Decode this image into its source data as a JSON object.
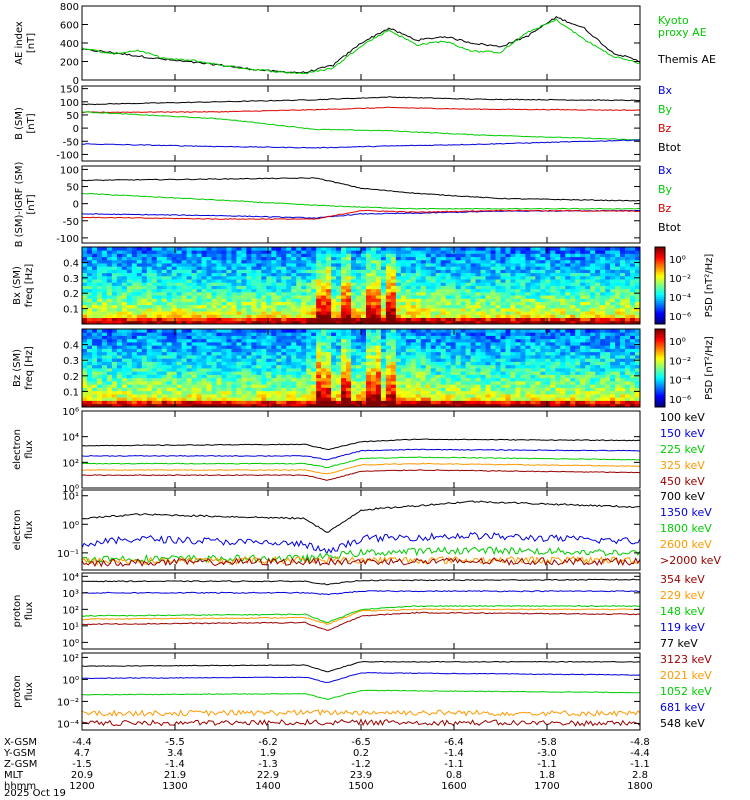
{
  "time_axis": {
    "labels": [
      "1200",
      "1300",
      "1400",
      "1500",
      "1600",
      "1700",
      "1800"
    ],
    "rows": [
      {
        "label": "X-GSM",
        "values": [
          "-4.4",
          "-5.5",
          "-6.2",
          "-6.5",
          "-6.4",
          "-5.8",
          "-4.8"
        ]
      },
      {
        "label": "Y-GSM",
        "values": [
          "4.7",
          "3.4",
          "1.9",
          "0.2",
          "-1.4",
          "-3.0",
          "-4.4"
        ]
      },
      {
        "label": "Z-GSM",
        "values": [
          "-1.5",
          "-1.4",
          "-1.3",
          "-1.2",
          "-1.1",
          "-1.1",
          "-1.1"
        ]
      },
      {
        "label": "MLT",
        "values": [
          "20.9",
          "21.9",
          "22.9",
          "23.9",
          "0.8",
          "1.8",
          "2.8"
        ]
      },
      {
        "label": "hhmm",
        "values": [
          "1200",
          "1300",
          "1400",
          "1500",
          "1600",
          "1700",
          "1800"
        ]
      }
    ],
    "date": "2025 Oct 19"
  },
  "chart_data": [
    {
      "type": "line",
      "id": "ae",
      "ylabel": "AE index",
      "yunits": "[nT]",
      "ylim": [
        0,
        800
      ],
      "yticks": [
        "0",
        "200",
        "400",
        "600",
        "800"
      ],
      "ytick_values": [
        0,
        200,
        400,
        600,
        800
      ],
      "series": [
        {
          "name": "Themis AE",
          "color": "#000000",
          "x": [
            0,
            0.05,
            0.1,
            0.15,
            0.2,
            0.25,
            0.3,
            0.35,
            0.4,
            0.45,
            0.5,
            0.55,
            0.6,
            0.65,
            0.7,
            0.75,
            0.8,
            0.85,
            0.9,
            0.95,
            1.0
          ],
          "values": [
            330,
            300,
            260,
            220,
            190,
            160,
            120,
            90,
            80,
            160,
            400,
            560,
            430,
            470,
            400,
            360,
            480,
            680,
            560,
            300,
            200
          ]
        },
        {
          "name": "Kyoto proxy AE",
          "color": "#00cc00",
          "x": [
            0,
            0.05,
            0.1,
            0.15,
            0.2,
            0.25,
            0.3,
            0.35,
            0.4,
            0.45,
            0.5,
            0.55,
            0.6,
            0.65,
            0.7,
            0.75,
            0.8,
            0.85,
            0.9,
            0.95,
            1.0
          ],
          "values": [
            350,
            280,
            320,
            230,
            210,
            160,
            120,
            90,
            70,
            130,
            370,
            540,
            380,
            420,
            310,
            300,
            520,
            650,
            440,
            260,
            180
          ]
        }
      ],
      "legend": [
        "Kyoto",
        "proxy AE",
        "Themis AE"
      ]
    },
    {
      "type": "line",
      "id": "bsm",
      "ylabel": "B (SM)",
      "yunits": "[nT]",
      "ylim": [
        -125,
        160
      ],
      "yticks": [
        "150",
        "100",
        "50",
        "0",
        "-50",
        "-100"
      ],
      "ytick_values": [
        150,
        100,
        50,
        0,
        -50,
        -100
      ],
      "series": [
        {
          "name": "Btot",
          "color": "#000000",
          "x": [
            0,
            0.25,
            0.42,
            0.55,
            0.7,
            1.0
          ],
          "values": [
            90,
            100,
            108,
            118,
            110,
            105
          ]
        },
        {
          "name": "Bz",
          "color": "#dd0000",
          "x": [
            0,
            0.25,
            0.42,
            0.55,
            0.7,
            1.0
          ],
          "values": [
            60,
            62,
            70,
            78,
            72,
            68
          ]
        },
        {
          "name": "By",
          "color": "#00cc00",
          "x": [
            0,
            0.25,
            0.42,
            0.55,
            0.7,
            1.0
          ],
          "values": [
            62,
            35,
            -5,
            -10,
            -25,
            -45
          ]
        },
        {
          "name": "Bx",
          "color": "#0000dd",
          "x": [
            0,
            0.25,
            0.42,
            0.55,
            0.7,
            1.0
          ],
          "values": [
            -60,
            -70,
            -75,
            -68,
            -62,
            -45
          ]
        }
      ],
      "legend": [
        "Bx",
        "By",
        "Bz",
        "Btot"
      ]
    },
    {
      "type": "line",
      "id": "bigrf",
      "ylabel": "B (SM)-IGRF (SM)",
      "yunits": "[nT]",
      "ylim": [
        -115,
        110
      ],
      "yticks": [
        "100",
        "50",
        "0",
        "-50",
        "-100"
      ],
      "ytick_values": [
        100,
        50,
        0,
        -50,
        -100
      ],
      "series": [
        {
          "name": "Btot",
          "color": "#000000",
          "x": [
            0,
            0.25,
            0.42,
            0.5,
            0.6,
            0.75,
            1.0
          ],
          "values": [
            68,
            72,
            75,
            45,
            30,
            15,
            8
          ]
        },
        {
          "name": "By",
          "color": "#00cc00",
          "x": [
            0,
            0.25,
            0.42,
            0.5,
            0.6,
            0.75,
            1.0
          ],
          "values": [
            30,
            10,
            -5,
            -10,
            -15,
            -15,
            -15
          ]
        },
        {
          "name": "Bx",
          "color": "#0000dd",
          "x": [
            0,
            0.25,
            0.42,
            0.5,
            0.6,
            0.75,
            1.0
          ],
          "values": [
            -30,
            -35,
            -42,
            -30,
            -28,
            -22,
            -20
          ]
        },
        {
          "name": "Bz",
          "color": "#dd0000",
          "x": [
            0,
            0.25,
            0.42,
            0.5,
            0.6,
            0.75,
            1.0
          ],
          "values": [
            -40,
            -45,
            -45,
            -20,
            -25,
            -20,
            -22
          ]
        }
      ],
      "legend": [
        "Bx",
        "By",
        "Bz",
        "Btot"
      ]
    },
    {
      "type": "heatmap",
      "id": "bx_spec",
      "ylabel": "Bx (SM)",
      "ylabel2": "freq [Hz]",
      "ylim": [
        0,
        0.5
      ],
      "yticks": [
        "0.4",
        "0.3",
        "0.2",
        "0.1"
      ],
      "ytick_values": [
        0.4,
        0.3,
        0.2,
        0.1
      ],
      "colorbar": {
        "label": "PSD [nT²/Hz]",
        "ticks": [
          "10⁰",
          "10⁻²",
          "10⁻⁴",
          "10⁻⁶"
        ]
      },
      "enhanced_intervals": [
        0.43,
        0.47,
        0.52,
        0.55
      ]
    },
    {
      "type": "heatmap",
      "id": "bz_spec",
      "ylabel": "Bz (SM)",
      "ylabel2": "freq [Hz]",
      "ylim": [
        0,
        0.5
      ],
      "yticks": [
        "0.4",
        "0.3",
        "0.2",
        "0.1"
      ],
      "ytick_values": [
        0.4,
        0.3,
        0.2,
        0.1
      ],
      "colorbar": {
        "label": "PSD [nT²/Hz]",
        "ticks": [
          "10⁰",
          "10⁻²",
          "10⁻⁴",
          "10⁻⁶"
        ]
      },
      "enhanced_intervals": [
        0.43,
        0.47,
        0.52,
        0.55
      ]
    },
    {
      "type": "line",
      "id": "elec_low",
      "ylabel": "electron",
      "ylabel2": "flux",
      "ylog": true,
      "ylim": [
        0,
        6
      ],
      "yticks": [
        "10⁶",
        "10⁴",
        "10²",
        "10⁰"
      ],
      "ytick_values": [
        6,
        4,
        2,
        0
      ],
      "series": [
        {
          "name": "100 keV",
          "color": "#000000",
          "x": [
            0,
            0.4,
            0.44,
            0.5,
            0.6,
            1.0
          ],
          "values": [
            3.3,
            3.4,
            3.0,
            3.6,
            3.8,
            3.7
          ]
        },
        {
          "name": "150 keV",
          "color": "#0000dd",
          "x": [
            0,
            0.4,
            0.44,
            0.5,
            0.6,
            1.0
          ],
          "values": [
            2.5,
            2.5,
            2.2,
            2.9,
            3.0,
            2.9
          ]
        },
        {
          "name": "225 keV",
          "color": "#00cc00",
          "x": [
            0,
            0.4,
            0.44,
            0.5,
            0.6,
            1.0
          ],
          "values": [
            1.9,
            1.9,
            1.6,
            2.3,
            2.4,
            2.2
          ]
        },
        {
          "name": "325 keV",
          "color": "#ff9900",
          "x": [
            0,
            0.4,
            0.44,
            0.5,
            0.6,
            1.0
          ],
          "values": [
            1.4,
            1.4,
            1.1,
            1.8,
            1.9,
            1.7
          ]
        },
        {
          "name": "450 keV",
          "color": "#990000",
          "x": [
            0,
            0.4,
            0.44,
            0.5,
            0.6,
            1.0
          ],
          "values": [
            1.0,
            1.0,
            0.6,
            1.3,
            1.4,
            1.2
          ]
        }
      ]
    },
    {
      "type": "line",
      "id": "elec_high",
      "ylabel": "electron",
      "ylabel2": "flux",
      "ylog": true,
      "ylim": [
        -1.6,
        1.2
      ],
      "yticks": [
        "10¹",
        "10⁰",
        "10⁻¹"
      ],
      "ytick_values": [
        1,
        0,
        -1
      ],
      "series": [
        {
          "name": "700 keV",
          "color": "#000000",
          "x": [
            0,
            0.1,
            0.4,
            0.44,
            0.5,
            0.7,
            1.0
          ],
          "values": [
            0.2,
            0.35,
            0.2,
            -0.3,
            0.5,
            0.8,
            0.6
          ]
        },
        {
          "name": "1350 keV",
          "color": "#0000dd",
          "x": [
            0,
            0.1,
            0.4,
            0.44,
            0.5,
            0.7,
            1.0
          ],
          "values": [
            -0.7,
            -0.5,
            -0.7,
            -1.0,
            -0.5,
            -0.4,
            -0.6
          ]
        },
        {
          "name": "1800 keV",
          "color": "#00cc00",
          "x": [
            0,
            0.4,
            0.5,
            0.7,
            1.0
          ],
          "values": [
            -1.2,
            -1.2,
            -1.0,
            -0.9,
            -1.0
          ]
        },
        {
          "name": "2600 keV",
          "color": "#ff9900",
          "x": [
            0,
            0.5,
            1.0
          ],
          "values": [
            -1.3,
            -1.25,
            -1.25
          ]
        },
        {
          "name": ">2000 keV",
          "color": "#990000",
          "x": [
            0,
            0.5,
            1.0
          ],
          "values": [
            -1.35,
            -1.3,
            -1.3
          ]
        }
      ]
    },
    {
      "type": "line",
      "id": "prot_high",
      "ylabel": "proton",
      "ylabel2": "flux",
      "ylog": true,
      "ylim": [
        -0.4,
        4.2
      ],
      "yticks": [
        "10⁴",
        "10³",
        "10²",
        "10¹",
        "10⁰"
      ],
      "ytick_values": [
        4,
        3,
        2,
        1,
        0
      ],
      "series": [
        {
          "name": "77 keV",
          "color": "#000000",
          "x": [
            0,
            0.4,
            0.44,
            0.5,
            1.0
          ],
          "values": [
            3.7,
            3.7,
            3.5,
            3.75,
            3.8
          ]
        },
        {
          "name": "119 keV",
          "color": "#0000dd",
          "x": [
            0,
            0.4,
            0.44,
            0.5,
            1.0
          ],
          "values": [
            3.0,
            3.0,
            2.9,
            3.1,
            3.1
          ]
        },
        {
          "name": "148 keV",
          "color": "#00cc00",
          "x": [
            0,
            0.4,
            0.44,
            0.5,
            0.6,
            1.0
          ],
          "values": [
            1.6,
            1.7,
            1.2,
            2.0,
            2.2,
            2.2
          ]
        },
        {
          "name": "229 keV",
          "color": "#ff9900",
          "x": [
            0,
            0.4,
            0.44,
            0.5,
            0.6,
            1.0
          ],
          "values": [
            1.4,
            1.5,
            1.1,
            1.9,
            2.0,
            2.0
          ]
        },
        {
          "name": "354 keV",
          "color": "#990000",
          "x": [
            0,
            0.4,
            0.44,
            0.5,
            0.6,
            1.0
          ],
          "values": [
            1.1,
            1.2,
            0.7,
            1.6,
            1.8,
            1.7
          ]
        }
      ],
      "legend_order": [
        "354 keV",
        "229 keV",
        "148 keV",
        "119 keV",
        "77 keV"
      ]
    },
    {
      "type": "line",
      "id": "prot_low",
      "ylabel": "proton",
      "ylabel2": "flux",
      "ylog": true,
      "ylim": [
        -4.6,
        2.4
      ],
      "yticks": [
        "10²",
        "10⁰",
        "10⁻²",
        "10⁻⁴"
      ],
      "ytick_values": [
        2,
        0,
        -2,
        -4
      ],
      "series": [
        {
          "name": "548 keV",
          "color": "#000000",
          "x": [
            0,
            0.4,
            0.44,
            0.5,
            1.0
          ],
          "values": [
            1.2,
            1.3,
            0.7,
            1.6,
            1.6
          ]
        },
        {
          "name": "681 keV",
          "color": "#0000dd",
          "x": [
            0,
            0.4,
            0.44,
            0.5,
            1.0
          ],
          "values": [
            0.1,
            0.2,
            -0.3,
            0.6,
            0.4
          ]
        },
        {
          "name": "1052 keV",
          "color": "#00cc00",
          "x": [
            0,
            0.4,
            0.44,
            0.5,
            1.0
          ],
          "values": [
            -1.4,
            -1.3,
            -1.8,
            -1.0,
            -1.2
          ]
        },
        {
          "name": "2021 keV",
          "color": "#ff9900",
          "x": [
            0,
            0.5,
            1.0
          ],
          "values": [
            -3.1,
            -3.0,
            -3.1
          ]
        },
        {
          "name": "3123 keV",
          "color": "#990000",
          "x": [
            0,
            0.5,
            1.0
          ],
          "values": [
            -4.0,
            -3.9,
            -4.0
          ]
        }
      ],
      "legend_order": [
        "3123 keV",
        "2021 keV",
        "1052 keV",
        "681 keV",
        "548 keV"
      ]
    }
  ]
}
